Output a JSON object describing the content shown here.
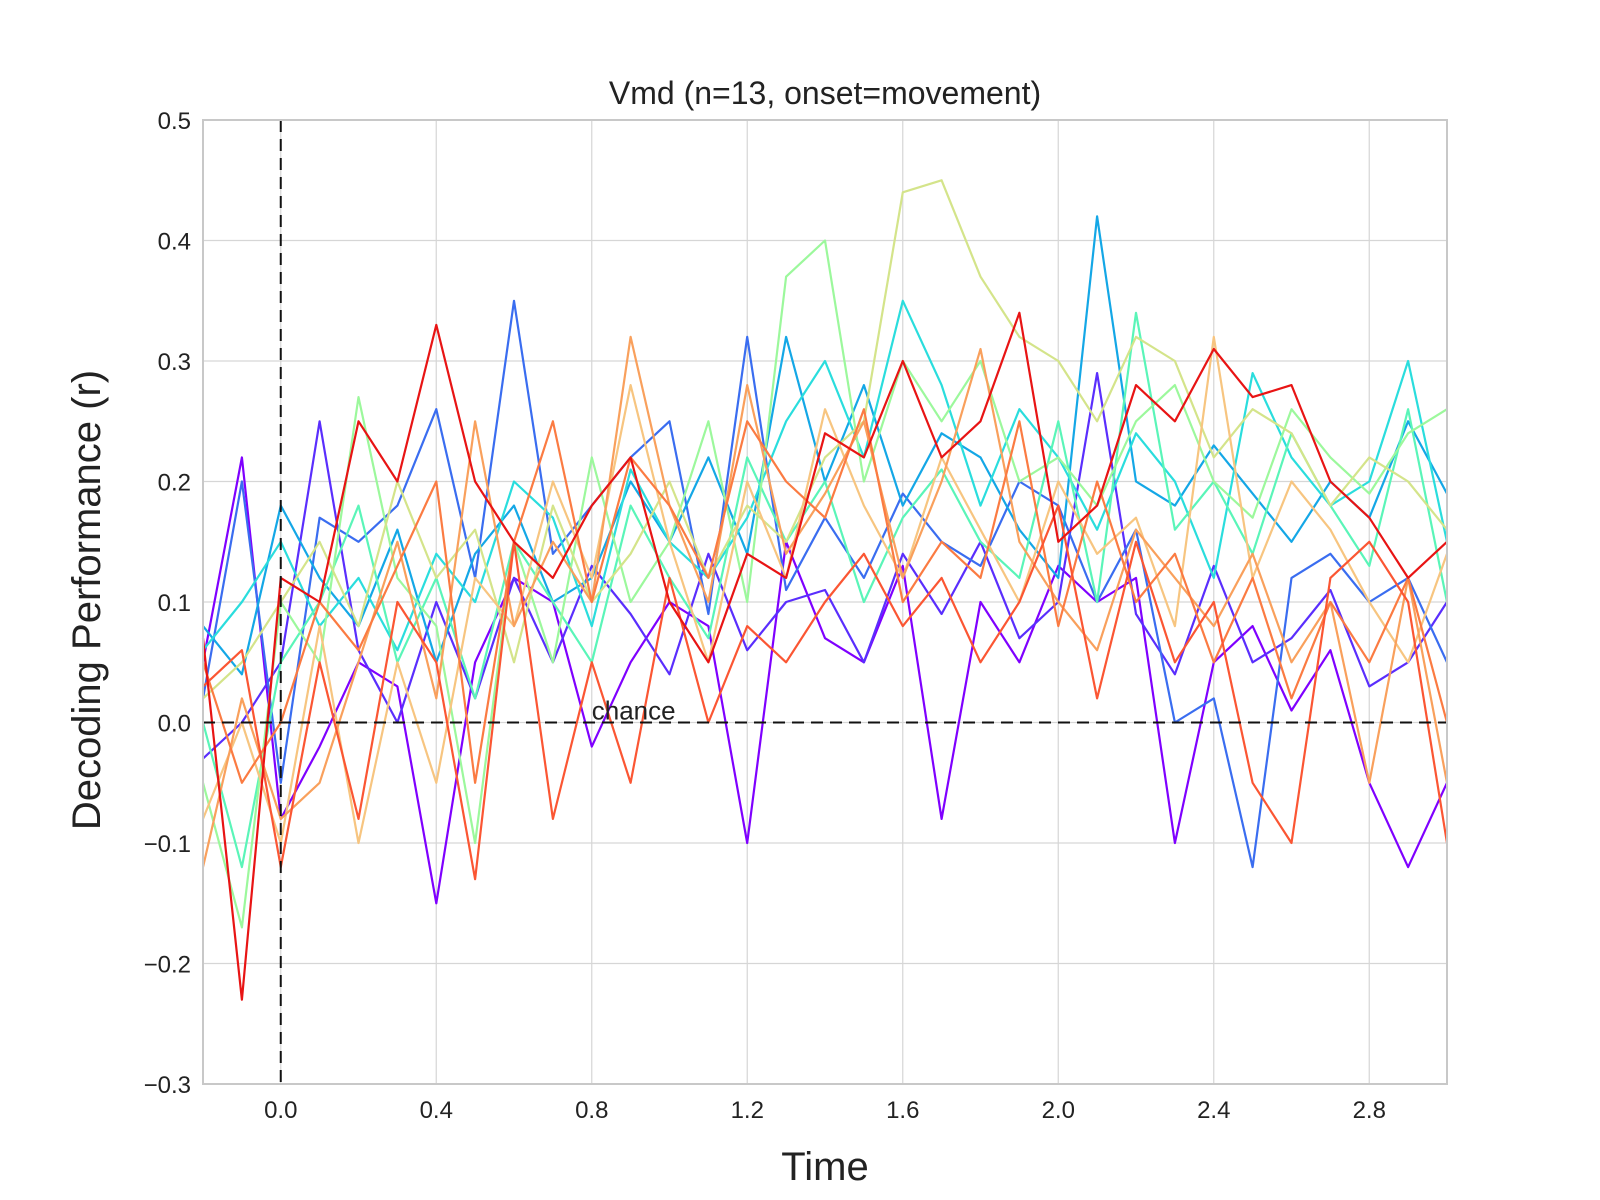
{
  "chart_data": {
    "type": "line",
    "title": "Vmd (n=13, onset=movement)",
    "xlabel": "Time",
    "ylabel": "Decoding Performance (r)",
    "xlim": [
      -0.2,
      3.0
    ],
    "ylim": [
      -0.3,
      0.5
    ],
    "xticks": [
      0.0,
      0.4,
      0.8,
      1.2,
      1.6,
      2.0,
      2.4,
      2.8
    ],
    "xtick_labels": [
      "0.0",
      "0.4",
      "0.8",
      "1.2",
      "1.6",
      "2.0",
      "2.4",
      "2.8"
    ],
    "yticks": [
      -0.3,
      -0.2,
      -0.1,
      0.0,
      0.1,
      0.2,
      0.3,
      0.4,
      0.5
    ],
    "ytick_labels": [
      "−0.3",
      "−0.2",
      "−0.1",
      "0.0",
      "0.1",
      "0.2",
      "0.3",
      "0.4",
      "0.5"
    ],
    "grid": true,
    "annotations": [
      {
        "text": "chance",
        "x": 0.8,
        "y": 0.0
      }
    ],
    "reference_lines": [
      {
        "orientation": "vertical",
        "value": 0.0,
        "style": "dashed"
      },
      {
        "orientation": "horizontal",
        "value": 0.0,
        "style": "dashed"
      }
    ],
    "x": [
      -0.2,
      -0.1,
      0.0,
      0.1,
      0.2,
      0.3,
      0.4,
      0.5,
      0.6,
      0.7,
      0.8,
      0.9,
      1.0,
      1.1,
      1.2,
      1.3,
      1.4,
      1.5,
      1.6,
      1.7,
      1.8,
      1.9,
      2.0,
      2.1,
      2.2,
      2.3,
      2.4,
      2.5,
      2.6,
      2.7,
      2.8,
      2.9,
      3.0
    ],
    "series": [
      {
        "color": "#7f00ff",
        "values": [
          0.05,
          0.22,
          -0.08,
          -0.02,
          0.05,
          0.03,
          -0.15,
          0.05,
          0.12,
          0.1,
          -0.02,
          0.05,
          0.1,
          0.08,
          -0.1,
          0.15,
          0.07,
          0.05,
          0.13,
          -0.08,
          0.1,
          0.05,
          0.13,
          0.1,
          0.12,
          -0.1,
          0.05,
          0.08,
          0.01,
          0.06,
          -0.05,
          -0.12,
          -0.05
        ]
      },
      {
        "color": "#5a2efd",
        "values": [
          -0.03,
          0.0,
          0.05,
          0.25,
          0.06,
          0.0,
          0.1,
          0.02,
          0.12,
          0.05,
          0.13,
          0.09,
          0.04,
          0.14,
          0.06,
          0.1,
          0.11,
          0.05,
          0.14,
          0.09,
          0.15,
          0.07,
          0.1,
          0.29,
          0.09,
          0.04,
          0.13,
          0.05,
          0.07,
          0.11,
          0.03,
          0.05,
          0.1
        ]
      },
      {
        "color": "#3a6df0",
        "values": [
          0.02,
          0.2,
          -0.05,
          0.17,
          0.15,
          0.18,
          0.26,
          0.12,
          0.35,
          0.14,
          0.18,
          0.22,
          0.25,
          0.09,
          0.32,
          0.11,
          0.17,
          0.12,
          0.19,
          0.15,
          0.13,
          0.2,
          0.18,
          0.1,
          0.16,
          0.0,
          0.02,
          -0.12,
          0.12,
          0.14,
          0.1,
          0.12,
          0.05
        ]
      },
      {
        "color": "#14a7e6",
        "values": [
          0.08,
          0.04,
          0.18,
          0.12,
          0.08,
          0.16,
          0.05,
          0.14,
          0.18,
          0.1,
          0.12,
          0.2,
          0.15,
          0.22,
          0.14,
          0.32,
          0.2,
          0.28,
          0.18,
          0.24,
          0.22,
          0.16,
          0.12,
          0.42,
          0.2,
          0.18,
          0.23,
          0.19,
          0.15,
          0.2,
          0.17,
          0.25,
          0.19
        ]
      },
      {
        "color": "#2adddd",
        "values": [
          0.06,
          0.1,
          0.15,
          0.08,
          0.12,
          0.06,
          0.14,
          0.1,
          0.2,
          0.17,
          0.08,
          0.21,
          0.15,
          0.12,
          0.17,
          0.25,
          0.3,
          0.22,
          0.35,
          0.28,
          0.18,
          0.26,
          0.22,
          0.16,
          0.24,
          0.2,
          0.12,
          0.29,
          0.22,
          0.18,
          0.2,
          0.3,
          0.15
        ]
      },
      {
        "color": "#5af5b8",
        "values": [
          0.0,
          -0.12,
          0.05,
          0.1,
          0.18,
          0.05,
          0.12,
          0.02,
          0.15,
          0.1,
          0.05,
          0.18,
          0.12,
          0.07,
          0.22,
          0.15,
          0.2,
          0.1,
          0.17,
          0.21,
          0.15,
          0.12,
          0.25,
          0.1,
          0.34,
          0.16,
          0.2,
          0.14,
          0.24,
          0.18,
          0.13,
          0.26,
          0.1
        ]
      },
      {
        "color": "#9cf89c",
        "values": [
          -0.05,
          -0.17,
          0.1,
          0.05,
          0.27,
          0.12,
          0.08,
          -0.1,
          0.15,
          0.05,
          0.22,
          0.1,
          0.15,
          0.25,
          0.1,
          0.37,
          0.4,
          0.2,
          0.3,
          0.25,
          0.3,
          0.2,
          0.22,
          0.18,
          0.25,
          0.28,
          0.2,
          0.17,
          0.26,
          0.22,
          0.19,
          0.24,
          0.26
        ]
      },
      {
        "color": "#d4e48a",
        "values": [
          0.02,
          0.05,
          0.1,
          0.15,
          0.08,
          0.2,
          0.12,
          0.16,
          0.05,
          0.18,
          0.1,
          0.14,
          0.2,
          0.12,
          0.18,
          0.15,
          0.22,
          0.25,
          0.44,
          0.45,
          0.37,
          0.32,
          0.3,
          0.25,
          0.32,
          0.3,
          0.22,
          0.26,
          0.24,
          0.18,
          0.22,
          0.2,
          0.16
        ]
      },
      {
        "color": "#f7c580",
        "values": [
          -0.08,
          0.0,
          -0.1,
          0.08,
          -0.1,
          0.05,
          -0.05,
          0.12,
          0.08,
          0.2,
          0.12,
          0.28,
          0.15,
          0.05,
          0.2,
          0.12,
          0.26,
          0.18,
          0.12,
          0.22,
          0.16,
          0.1,
          0.2,
          0.14,
          0.17,
          0.08,
          0.32,
          0.12,
          0.2,
          0.16,
          0.1,
          0.05,
          0.14
        ]
      },
      {
        "color": "#f9a05c",
        "values": [
          -0.12,
          0.02,
          -0.08,
          -0.05,
          0.05,
          0.15,
          0.02,
          0.25,
          0.08,
          0.15,
          0.1,
          0.32,
          0.18,
          0.1,
          0.28,
          0.14,
          0.19,
          0.25,
          0.12,
          0.2,
          0.31,
          0.15,
          0.1,
          0.06,
          0.16,
          0.12,
          0.08,
          0.14,
          0.05,
          0.1,
          -0.05,
          0.12,
          -0.05
        ]
      },
      {
        "color": "#fb7b42",
        "values": [
          0.05,
          -0.05,
          0.0,
          0.1,
          0.06,
          0.13,
          0.2,
          -0.05,
          0.15,
          0.25,
          0.1,
          0.22,
          0.18,
          0.12,
          0.25,
          0.2,
          0.17,
          0.26,
          0.1,
          0.15,
          0.12,
          0.25,
          0.08,
          0.2,
          0.1,
          0.14,
          0.05,
          0.12,
          0.02,
          0.1,
          0.05,
          0.12,
          0.0
        ]
      },
      {
        "color": "#fb5633",
        "values": [
          0.03,
          0.06,
          -0.12,
          0.05,
          -0.08,
          0.1,
          0.05,
          -0.13,
          0.15,
          -0.08,
          0.05,
          -0.05,
          0.12,
          0.0,
          0.08,
          0.05,
          0.1,
          0.14,
          0.08,
          0.12,
          0.05,
          0.1,
          0.18,
          0.02,
          0.15,
          0.05,
          0.1,
          -0.05,
          -0.1,
          0.12,
          0.15,
          0.1,
          -0.1
        ]
      },
      {
        "color": "#e81414",
        "values": [
          0.07,
          -0.23,
          0.12,
          0.1,
          0.25,
          0.2,
          0.33,
          0.2,
          0.15,
          0.12,
          0.18,
          0.22,
          0.1,
          0.05,
          0.14,
          0.12,
          0.24,
          0.22,
          0.3,
          0.22,
          0.25,
          0.34,
          0.15,
          0.18,
          0.28,
          0.25,
          0.31,
          0.27,
          0.28,
          0.2,
          0.17,
          0.12,
          0.15
        ]
      }
    ]
  }
}
